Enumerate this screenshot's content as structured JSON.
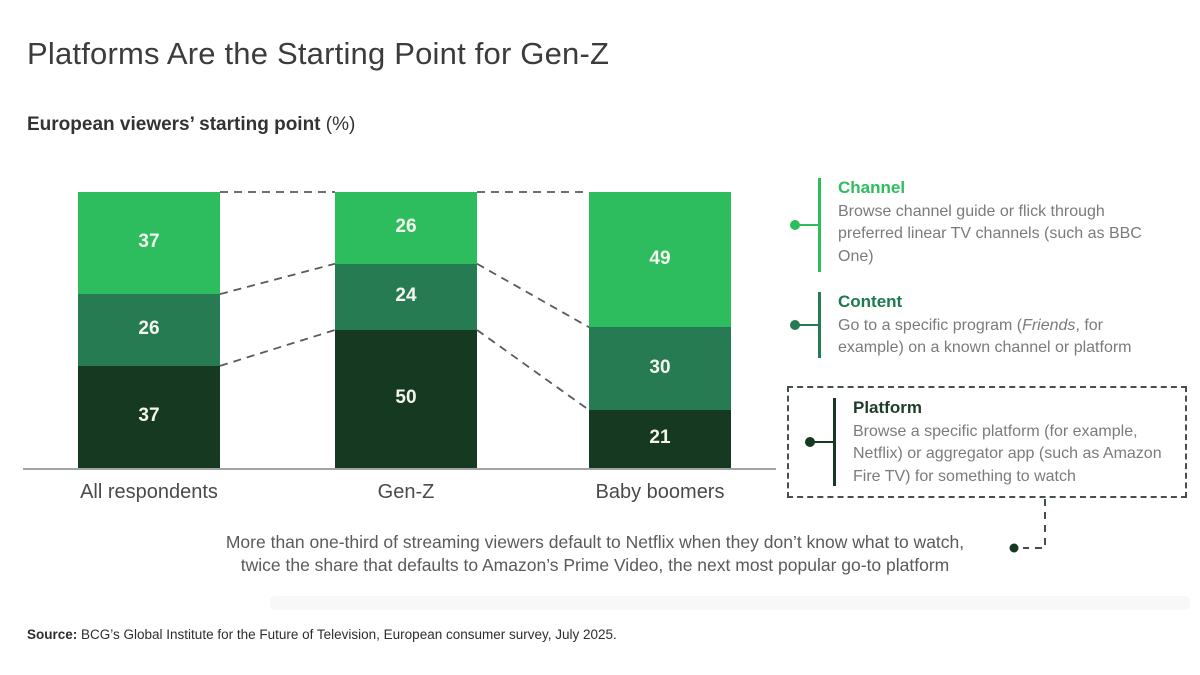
{
  "header": {
    "title": "Platforms Are the Starting Point for Gen-Z",
    "subtitle_bold": "European viewers’ starting point",
    "subtitle_unit": " (%)"
  },
  "chart_data": {
    "type": "bar",
    "stacked": true,
    "title": "European viewers’ starting point (%)",
    "categories": [
      "All respondents",
      "Gen-Z",
      "Baby boomers"
    ],
    "series": [
      {
        "name": "Channel",
        "color": "#2ebd5e",
        "values": [
          37,
          26,
          49
        ]
      },
      {
        "name": "Content",
        "color": "#277b52",
        "values": [
          26,
          24,
          30
        ]
      },
      {
        "name": "Platform",
        "color": "#163a21",
        "values": [
          37,
          50,
          21
        ]
      }
    ],
    "stack_order_top_to_bottom": [
      "Channel",
      "Content",
      "Platform"
    ],
    "ylim": [
      0,
      100
    ],
    "value_labels": true,
    "connector_style": "dashed",
    "legend_position": "right"
  },
  "legend": {
    "channel": {
      "title": "Channel",
      "title_color": "#2ebd5e",
      "desc": "Browse channel guide or flick through preferred linear TV channels (such as BBC One)"
    },
    "content": {
      "title": "Content",
      "title_color": "#1d7a4e",
      "desc_pre": "Go to a specific program (",
      "desc_italic": "Friends",
      "desc_post": ", for example) on a known channel or platform"
    },
    "platform": {
      "title": "Platform",
      "title_color": "#1e3c28",
      "desc": "Browse a specific platform (for example, Netflix) or aggregator app (such as Amazon Fire TV) for something to watch"
    }
  },
  "annotation": {
    "line1": "More than one-third of streaming viewers default to Netflix when they don’t know what to watch,",
    "line2": "twice the share that defaults to Amazon’s Prime Video, the next most popular go-to platform"
  },
  "source": {
    "label": "Source:",
    "text": " BCG’s Global Institute for the Future of Television, European consumer survey, July 2025."
  },
  "colors": {
    "channel_green": "#2ebd5e",
    "content_green": "#277b52",
    "platform_dark_green": "#163a21",
    "axis_grey": "#a3a3a3",
    "connector_grey": "#5a5a5a",
    "box_dash_dark": "#465049"
  }
}
